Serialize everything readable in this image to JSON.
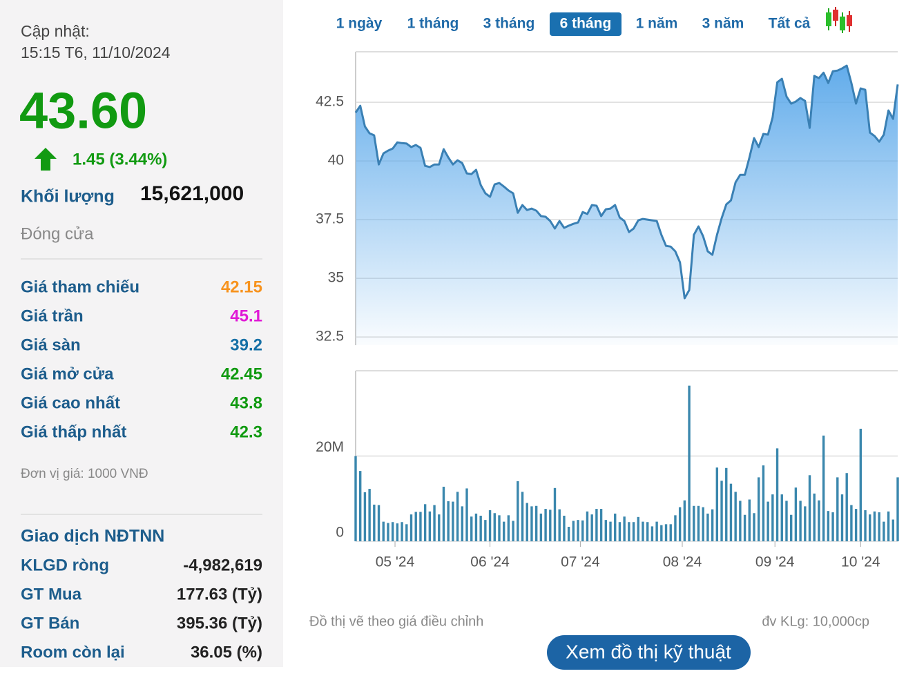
{
  "header": {
    "update_label": "Cập nhật:",
    "update_time": "15:15 T6, 11/10/2024"
  },
  "price": {
    "value": "43.60",
    "change": "1.45 (3.44%)",
    "color": "#119a11"
  },
  "volume": {
    "label": "Khối lượng",
    "value": "15,621,000"
  },
  "status": "Đóng cửa",
  "price_table": {
    "rows": [
      {
        "label": "Giá tham chiếu",
        "value": "42.15",
        "color": "#f7931e"
      },
      {
        "label": "Giá trần",
        "value": "45.1",
        "color": "#e01ad6"
      },
      {
        "label": "Giá sàn",
        "value": "39.2",
        "color": "#1670a6"
      },
      {
        "label": "Giá mở cửa",
        "value": "42.45",
        "color": "#119a11"
      },
      {
        "label": "Giá cao nhất",
        "value": "43.8",
        "color": "#119a11"
      },
      {
        "label": "Giá thấp nhất",
        "value": "42.3",
        "color": "#119a11"
      }
    ]
  },
  "unit_note": "Đơn vị giá: 1000 VNĐ",
  "foreign": {
    "title": "Giao dịch NĐTNN",
    "rows": [
      {
        "label": "KLGD ròng",
        "value": "-4,982,619"
      },
      {
        "label": "GT Mua",
        "value": "177.63 (Tỷ)"
      },
      {
        "label": "GT Bán",
        "value": "395.36 (Tỷ)"
      },
      {
        "label": "Room còn lại",
        "value": "36.05 (%)"
      }
    ]
  },
  "range_buttons": {
    "items": [
      "1 ngày",
      "1 tháng",
      "3 tháng",
      "6 tháng",
      "1 năm",
      "3 năm",
      "Tất cả"
    ],
    "active": 3
  },
  "chart_data": [
    {
      "type": "area",
      "color": "#3a80b4",
      "fill": "#5aa8ea",
      "grid": true,
      "xlim": [
        0,
        117
      ],
      "ylim": [
        32.15,
        44.65
      ],
      "yticks": [
        32.5,
        35,
        37.5,
        40,
        42.5
      ],
      "values": [
        42.06,
        42.35,
        41.47,
        41.18,
        41.09,
        39.85,
        40.32,
        40.44,
        40.53,
        40.79,
        40.76,
        40.74,
        40.59,
        40.68,
        40.56,
        39.79,
        39.74,
        39.85,
        39.85,
        40.5,
        40.15,
        39.85,
        40.03,
        39.91,
        39.47,
        39.44,
        39.62,
        38.97,
        38.62,
        38.47,
        39.0,
        39.06,
        38.91,
        38.74,
        38.62,
        37.79,
        38.12,
        37.91,
        37.97,
        37.88,
        37.65,
        37.62,
        37.44,
        37.12,
        37.44,
        37.15,
        37.24,
        37.32,
        37.38,
        37.82,
        37.74,
        38.12,
        38.09,
        37.65,
        37.94,
        37.97,
        38.12,
        37.59,
        37.44,
        36.97,
        37.12,
        37.47,
        37.53,
        37.5,
        37.47,
        37.44,
        36.85,
        36.38,
        36.35,
        36.15,
        35.68,
        34.15,
        34.5,
        36.85,
        37.21,
        36.79,
        36.15,
        36.0,
        36.85,
        37.56,
        38.15,
        38.32,
        39.09,
        39.41,
        39.41,
        40.15,
        40.97,
        40.59,
        41.15,
        41.12,
        41.85,
        43.35,
        43.5,
        42.74,
        42.44,
        42.53,
        42.68,
        42.56,
        41.41,
        43.62,
        43.53,
        43.76,
        43.32,
        43.82,
        43.85,
        43.94,
        44.06,
        43.32,
        42.44,
        43.09,
        43.03,
        41.21,
        41.06,
        40.82,
        41.12,
        42.15,
        41.79,
        43.26
      ]
    },
    {
      "type": "bar",
      "color": "#3a87ad",
      "grid": true,
      "xlim": [
        0,
        117
      ],
      "ylim": [
        0,
        40000000
      ],
      "yticks": [
        0,
        {
          "value": 20000000,
          "label": "20M"
        }
      ],
      "xticks": [
        {
          "value": 8.5,
          "label": "05 '24"
        },
        {
          "value": 29,
          "label": "06 '24"
        },
        {
          "value": 48.5,
          "label": "07 '24"
        },
        {
          "value": 70.5,
          "label": "08 '24"
        },
        {
          "value": 90.5,
          "label": "09 '24"
        },
        {
          "value": 109,
          "label": "10 '24"
        }
      ],
      "values": [
        20000000,
        16500000,
        11500000,
        12300000,
        8600000,
        8500000,
        4600000,
        4300000,
        4500000,
        4200000,
        4500000,
        4000000,
        6300000,
        6900000,
        6900000,
        8700000,
        7000000,
        8500000,
        6300000,
        12800000,
        9400000,
        9300000,
        11600000,
        8200000,
        12400000,
        5800000,
        6500000,
        6000000,
        5000000,
        7300000,
        6600000,
        6100000,
        4600000,
        6100000,
        4800000,
        14100000,
        11600000,
        9000000,
        8200000,
        8300000,
        6500000,
        7600000,
        7400000,
        12500000,
        7500000,
        6000000,
        3400000,
        4800000,
        5000000,
        4900000,
        7000000,
        6300000,
        7600000,
        7600000,
        5000000,
        4600000,
        6500000,
        4500000,
        5800000,
        4500000,
        4500000,
        5700000,
        4600000,
        4500000,
        3500000,
        4600000,
        3800000,
        4000000,
        4000000,
        6100000,
        8000000,
        9600000,
        36500000,
        8300000,
        8300000,
        8000000,
        6500000,
        7500000,
        17300000,
        14200000,
        17200000,
        13500000,
        11600000,
        9500000,
        6200000,
        9800000,
        6600000,
        15000000,
        17800000,
        9300000,
        11000000,
        21800000,
        11000000,
        9500000,
        6200000,
        12600000,
        9500000,
        8200000,
        15500000,
        11200000,
        9600000,
        24800000,
        7100000,
        6800000,
        15000000,
        11000000,
        16000000,
        8500000,
        7600000,
        26400000,
        7300000,
        6300000,
        7000000,
        6800000,
        4600000,
        7000000,
        5100000,
        15000000
      ]
    }
  ],
  "footer": {
    "note": "Đồ thị vẽ theo giá điều chỉnh",
    "volume_unit": "đv KLg: 10,000cp",
    "button": "Xem đồ thị kỹ thuật"
  }
}
